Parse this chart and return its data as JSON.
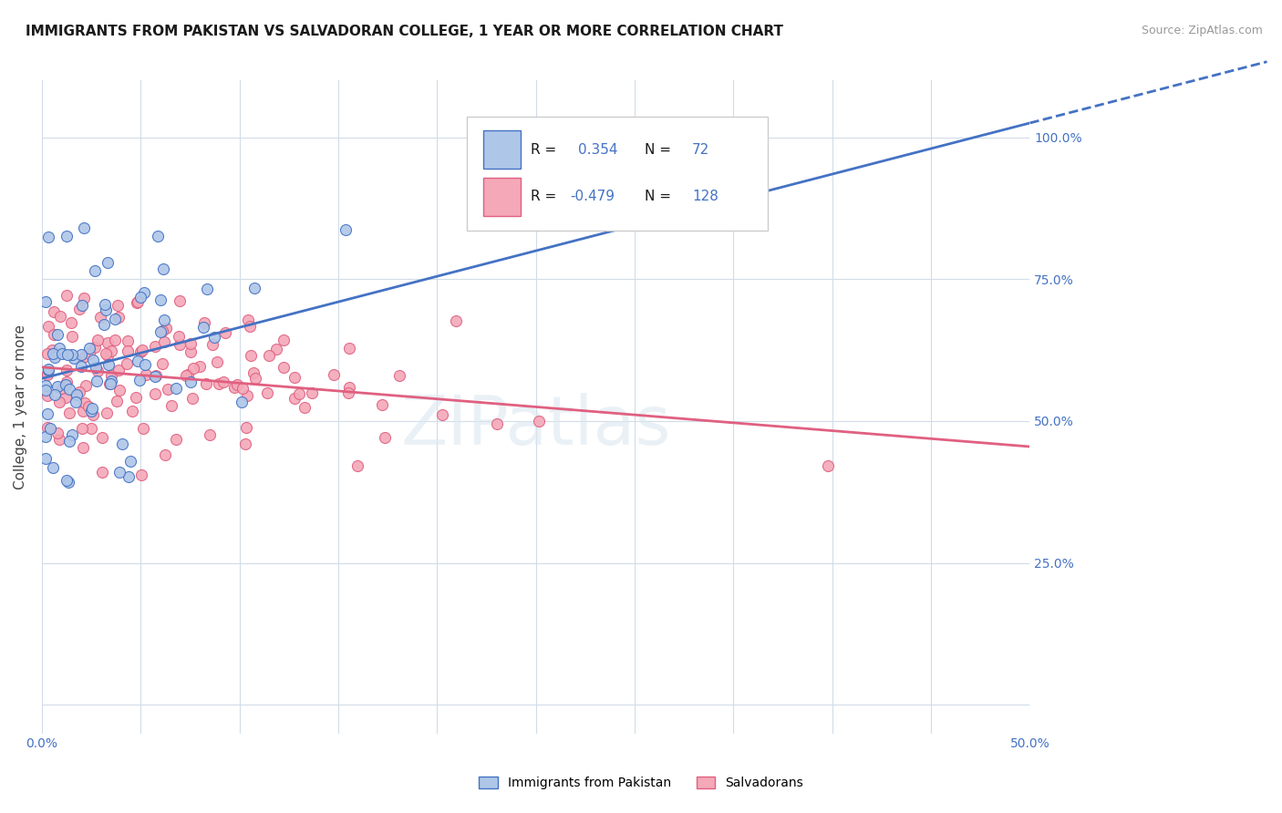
{
  "title": "IMMIGRANTS FROM PAKISTAN VS SALVADORAN COLLEGE, 1 YEAR OR MORE CORRELATION CHART",
  "source": "Source: ZipAtlas.com",
  "ylabel": "College, 1 year or more",
  "legend_r1": "0.354",
  "legend_n1": "72",
  "legend_r2": "-0.479",
  "legend_n2": "128",
  "blue_color": "#aec6e8",
  "pink_color": "#f4a8b8",
  "blue_line_color": "#4472c4",
  "pink_line_color": "#e06080",
  "watermark": "ZIPatlas",
  "background_color": "#ffffff",
  "grid_color": "#d0dce8",
  "xlim": [
    0.0,
    0.5
  ],
  "ylim": [
    -0.05,
    1.1
  ],
  "blue_intercept": 0.575,
  "blue_slope": 0.9,
  "pink_intercept": 0.595,
  "pink_slope": -0.28
}
